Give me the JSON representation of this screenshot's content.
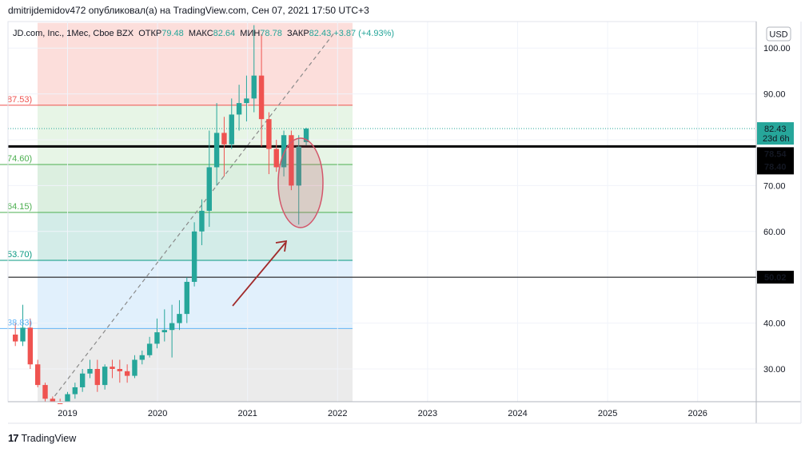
{
  "header": {
    "text": "dmitrijdemidov472 опубликовал(а) на TradingView.com, Сен 07, 2021 17:50 UTC+3"
  },
  "footer": {
    "brand": "TradingView"
  },
  "colors": {
    "up": "#26a69a",
    "down": "#ef5350",
    "fib_red": "#fcd8d5",
    "fib_green": "#e3f3e2",
    "fib_green2": "#d6ecdb",
    "fib_teal": "#cbe9e4",
    "fib_blue": "#dcedfb",
    "fib_grey": "#e8e8e8",
    "arrow": "#a12a2a",
    "ellipse": "#d3566a"
  },
  "legend": {
    "symbol": "JD.com, Inc., 1Мес, Cboe BZX",
    "open_label": "ОТКР",
    "open": "79.48",
    "high_label": "МАКС",
    "high": "82.64",
    "low_label": "МИН",
    "low": "78.78",
    "close_label": "ЗАКР",
    "close": "82.43",
    "change": "+3.87 (+4.93%)"
  },
  "currency_button": "USD",
  "chart_data": {
    "type": "candlestick",
    "ylim": [
      22,
      105
    ],
    "x_axis_labels": [
      "2019",
      "2020",
      "2021",
      "2022",
      "2023",
      "2024",
      "2025",
      "2026"
    ],
    "y_axis_labels": [
      "100.00",
      "90.00",
      "80.00",
      "70.00",
      "60.00",
      "50.00",
      "40.00",
      "30.00"
    ],
    "y_ticks": [
      100,
      90,
      80,
      70,
      60,
      50,
      40,
      30
    ],
    "fib_levels": [
      {
        "label": "87.53)",
        "value": 87.53
      },
      {
        "label": "74.60)",
        "value": 74.6
      },
      {
        "label": "64.15)",
        "value": 64.15
      },
      {
        "label": "53.70)",
        "value": 53.7
      },
      {
        "label": "38.83)",
        "value": 38.83
      }
    ],
    "horizontal_lines": [
      {
        "value": 78.54
      },
      {
        "value": 50.02
      }
    ],
    "price_tags": [
      {
        "label": "82.43",
        "sub": "23d 6h",
        "value": 82.43
      },
      {
        "label": "78.54",
        "value": 78.54
      },
      {
        "label": "78.40",
        "value": 78.4
      },
      {
        "label": "50.02",
        "value": 50.02
      }
    ],
    "candles": [
      {
        "date": "2018-06",
        "o": 37.5,
        "h": 40,
        "l": 35,
        "c": 36
      },
      {
        "date": "2018-07",
        "o": 36,
        "h": 44,
        "l": 35,
        "c": 39
      },
      {
        "date": "2018-08",
        "o": 39,
        "h": 41,
        "l": 30,
        "c": 31
      },
      {
        "date": "2018-09",
        "o": 31,
        "h": 32,
        "l": 26,
        "c": 26.5
      },
      {
        "date": "2018-10",
        "o": 26.5,
        "h": 27,
        "l": 22,
        "c": 23.5
      },
      {
        "date": "2018-11",
        "o": 23.5,
        "h": 24,
        "l": 19.5,
        "c": 22.5
      },
      {
        "date": "2018-12",
        "o": 22.5,
        "h": 23.5,
        "l": 19.5,
        "c": 21
      },
      {
        "date": "2019-01",
        "o": 21,
        "h": 25,
        "l": 20.5,
        "c": 24.5
      },
      {
        "date": "2019-02",
        "o": 24.5,
        "h": 27,
        "l": 23.5,
        "c": 26
      },
      {
        "date": "2019-03",
        "o": 26,
        "h": 30,
        "l": 25,
        "c": 29
      },
      {
        "date": "2019-04",
        "o": 29,
        "h": 32,
        "l": 28,
        "c": 30
      },
      {
        "date": "2019-05",
        "o": 30,
        "h": 32,
        "l": 25,
        "c": 26.5
      },
      {
        "date": "2019-06",
        "o": 26.5,
        "h": 31,
        "l": 25.5,
        "c": 30.5
      },
      {
        "date": "2019-07",
        "o": 30.5,
        "h": 32,
        "l": 28,
        "c": 30
      },
      {
        "date": "2019-08",
        "o": 30,
        "h": 32,
        "l": 27,
        "c": 29.5
      },
      {
        "date": "2019-09",
        "o": 29.5,
        "h": 31,
        "l": 27,
        "c": 28.5
      },
      {
        "date": "2019-10",
        "o": 28.5,
        "h": 33,
        "l": 28,
        "c": 32
      },
      {
        "date": "2019-11",
        "o": 32,
        "h": 34,
        "l": 31,
        "c": 33
      },
      {
        "date": "2019-12",
        "o": 33,
        "h": 37,
        "l": 32.5,
        "c": 35.5
      },
      {
        "date": "2020-01",
        "o": 35.5,
        "h": 41,
        "l": 34.5,
        "c": 38
      },
      {
        "date": "2020-02",
        "o": 38,
        "h": 43,
        "l": 36,
        "c": 38.5
      },
      {
        "date": "2020-03",
        "o": 38.5,
        "h": 44,
        "l": 32.5,
        "c": 40
      },
      {
        "date": "2020-04",
        "o": 40,
        "h": 45,
        "l": 38.5,
        "c": 42
      },
      {
        "date": "2020-05",
        "o": 42,
        "h": 50,
        "l": 40,
        "c": 49
      },
      {
        "date": "2020-06",
        "o": 49,
        "h": 62,
        "l": 48,
        "c": 60
      },
      {
        "date": "2020-07",
        "o": 60,
        "h": 67,
        "l": 57,
        "c": 64.5
      },
      {
        "date": "2020-08",
        "o": 64.5,
        "h": 82,
        "l": 61,
        "c": 74
      },
      {
        "date": "2020-09",
        "o": 74,
        "h": 88,
        "l": 70,
        "c": 81.5
      },
      {
        "date": "2020-10",
        "o": 81.5,
        "h": 85,
        "l": 72,
        "c": 79
      },
      {
        "date": "2020-11",
        "o": 79,
        "h": 89,
        "l": 78,
        "c": 85.5
      },
      {
        "date": "2020-12",
        "o": 85.5,
        "h": 92,
        "l": 82,
        "c": 88
      },
      {
        "date": "2021-01",
        "o": 88,
        "h": 94,
        "l": 84,
        "c": 89
      },
      {
        "date": "2021-02",
        "o": 89,
        "h": 105,
        "l": 86,
        "c": 94
      },
      {
        "date": "2021-03",
        "o": 94,
        "h": 103,
        "l": 78.5,
        "c": 84.5
      },
      {
        "date": "2021-04",
        "o": 84.5,
        "h": 86,
        "l": 72.5,
        "c": 78
      },
      {
        "date": "2021-05",
        "o": 78,
        "h": 80,
        "l": 73,
        "c": 74
      },
      {
        "date": "2021-06",
        "o": 74,
        "h": 82,
        "l": 72,
        "c": 81
      },
      {
        "date": "2021-07",
        "o": 81,
        "h": 82,
        "l": 69,
        "c": 70
      },
      {
        "date": "2021-08",
        "o": 70,
        "h": 81,
        "l": 61.5,
        "c": 78.5
      },
      {
        "date": "2021-09",
        "o": 79.48,
        "h": 82.64,
        "l": 78.78,
        "c": 82.43
      }
    ]
  }
}
